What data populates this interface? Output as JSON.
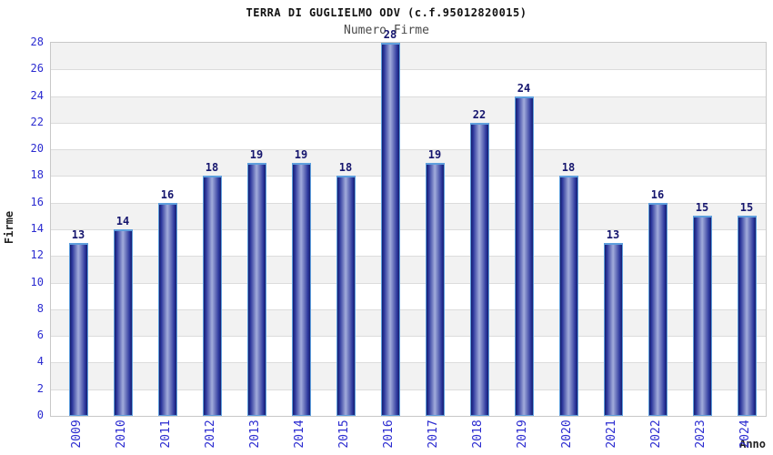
{
  "chart_data": {
    "type": "bar",
    "title": "TERRA DI GUGLIELMO ODV (c.f.95012820015)",
    "subtitle": "Numero Firme",
    "xlabel": "Anno",
    "ylabel": "Firme",
    "categories": [
      "2009",
      "2010",
      "2011",
      "2012",
      "2013",
      "2014",
      "2015",
      "2016",
      "2017",
      "2018",
      "2019",
      "2020",
      "2021",
      "2022",
      "2023",
      "2024"
    ],
    "values": [
      13,
      14,
      16,
      18,
      19,
      19,
      18,
      28,
      19,
      22,
      24,
      18,
      13,
      16,
      15,
      15
    ],
    "ylim": [
      0,
      28
    ],
    "ytick_step": 2,
    "grid": "horizontal",
    "legend": "none",
    "band_fill": "#f2f2f2",
    "gridline_color": "#dcdcdc",
    "tick_label_color": "#2b2bd0",
    "value_label_color": "#16166e",
    "bar_edge_color": "#5f9fdd",
    "bar_dark_color": "#151f6e",
    "bar_mid_color": "#2a359b",
    "bar_light_color": "#a2acdb"
  }
}
